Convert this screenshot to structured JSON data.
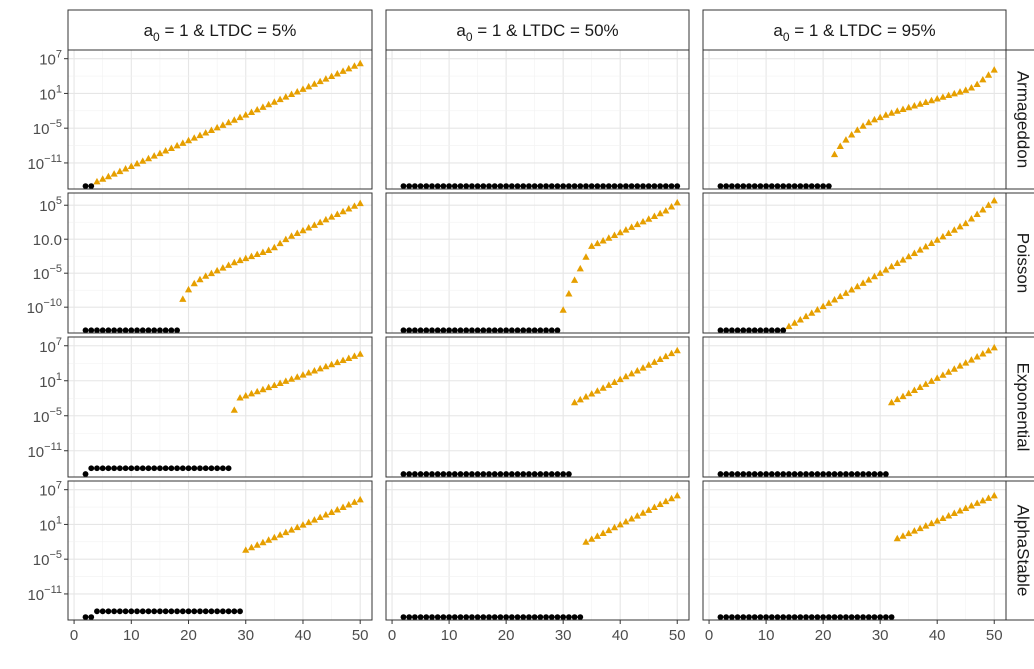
{
  "chart_data": {
    "type": "scatter",
    "x_ticks": [
      0,
      10,
      20,
      30,
      40,
      50
    ],
    "xlim": [
      0,
      51
    ],
    "y_scale": "log10",
    "rows": [
      {
        "label": "Armageddon",
        "y_ticks": [
          {
            "exp": 7,
            "text": "10",
            "sup": "7"
          },
          {
            "exp": 1,
            "text": "10",
            "sup": "1"
          },
          {
            "exp": -5,
            "text": "10",
            "sup": "−5"
          },
          {
            "exp": -11,
            "text": "10",
            "sup": "−11"
          }
        ],
        "ylim_log10": [
          -15.5,
          8.5
        ]
      },
      {
        "label": "Poisson",
        "y_ticks": [
          {
            "exp": 5,
            "text": "10",
            "sup": "5"
          },
          {
            "exp": 0,
            "text": "10.0",
            "sup": ""
          },
          {
            "exp": -5,
            "text": "10",
            "sup": "−5"
          },
          {
            "exp": -10,
            "text": "10",
            "sup": "−10"
          }
        ],
        "ylim_log10": [
          -13.8,
          6.8
        ]
      },
      {
        "label": "Exponential",
        "y_ticks": [
          {
            "exp": 7,
            "text": "10",
            "sup": "7"
          },
          {
            "exp": 1,
            "text": "10",
            "sup": "1"
          },
          {
            "exp": -5,
            "text": "10",
            "sup": "−5"
          },
          {
            "exp": -11,
            "text": "10",
            "sup": "−11"
          }
        ],
        "ylim_log10": [
          -15.5,
          8.5
        ]
      },
      {
        "label": "AlphaStable",
        "y_ticks": [
          {
            "exp": 7,
            "text": "10",
            "sup": "7"
          },
          {
            "exp": 1,
            "text": "10",
            "sup": "1"
          },
          {
            "exp": -5,
            "text": "10",
            "sup": "−5"
          },
          {
            "exp": -11,
            "text": "10",
            "sup": "−11"
          }
        ],
        "ylim_log10": [
          -15.5,
          8.5
        ]
      }
    ],
    "columns": [
      {
        "a_base": "a",
        "a_sub": "0",
        "rest": " = 1  &  LTDC = 5%"
      },
      {
        "a_base": "a",
        "a_sub": "0",
        "rest": " = 1  &  LTDC = 50%"
      },
      {
        "a_base": "a",
        "a_sub": "0",
        "rest": " = 1  &  LTDC = 95%"
      }
    ],
    "series": [
      {
        "name": "",
        "color": "#000000",
        "shape": "circle"
      },
      {
        "name": "",
        "color": "#E69F00",
        "shape": "triangle"
      }
    ],
    "panels": [
      {
        "row": 0,
        "col": 0,
        "black": {
          "x": [
            2,
            3
          ],
          "log10y": [
            -15.0,
            -15.0
          ]
        },
        "orange": {
          "x_start": 4,
          "x_end": 50,
          "log10y_start": -14.2,
          "log10y_end": 6.2
        }
      },
      {
        "row": 0,
        "col": 1,
        "black": {
          "x_start": 2,
          "x_end": 50,
          "log10y": -15.0
        },
        "orange": null
      },
      {
        "row": 0,
        "col": 2,
        "black": {
          "x_start": 2,
          "x_end": 21,
          "log10y": -15.0
        },
        "orange": {
          "x": [
            22,
            23,
            24,
            25,
            26,
            27,
            28,
            29,
            30,
            31,
            32,
            33,
            34,
            35,
            36,
            37,
            38,
            39,
            40,
            41,
            42,
            43,
            44,
            45,
            46,
            47,
            48,
            49,
            50
          ],
          "log10y": [
            -9.5,
            -8.1,
            -7.0,
            -6.1,
            -5.3,
            -4.6,
            -4.0,
            -3.5,
            -3.1,
            -2.7,
            -2.35,
            -2.0,
            -1.7,
            -1.4,
            -1.1,
            -0.8,
            -0.5,
            -0.2,
            0.1,
            0.4,
            0.7,
            1.0,
            1.3,
            1.6,
            2.0,
            2.6,
            3.4,
            4.2,
            5.1
          ]
        }
      },
      {
        "row": 1,
        "col": 0,
        "black": {
          "x_start": 2,
          "x_end": 18,
          "log10y": -13.4
        },
        "orange": {
          "x": [
            19,
            20,
            21,
            22,
            23,
            24,
            25,
            26,
            27,
            28,
            29,
            30,
            31,
            32,
            33,
            34,
            35,
            36,
            37,
            38,
            39,
            40,
            41,
            42,
            43,
            44,
            45,
            46,
            47,
            48,
            49,
            50
          ],
          "log10y": [
            -8.8,
            -7.4,
            -6.5,
            -5.9,
            -5.4,
            -5.0,
            -4.6,
            -4.2,
            -3.8,
            -3.4,
            -3.1,
            -2.8,
            -2.5,
            -2.2,
            -1.9,
            -1.6,
            -1.2,
            -0.6,
            0.0,
            0.5,
            0.9,
            1.3,
            1.7,
            2.1,
            2.5,
            2.9,
            3.3,
            3.7,
            4.1,
            4.5,
            4.9,
            5.3
          ]
        }
      },
      {
        "row": 1,
        "col": 1,
        "black": {
          "x_start": 2,
          "x_end": 29,
          "log10y": -13.4
        },
        "orange": {
          "x": [
            30,
            31,
            32,
            33,
            34,
            35,
            36,
            37,
            38,
            39,
            40,
            41,
            42,
            43,
            44,
            45,
            46,
            47,
            48,
            49,
            50
          ],
          "log10y": [
            -10.4,
            -8.0,
            -6.0,
            -4.3,
            -2.6,
            -1.0,
            -0.6,
            -0.2,
            0.2,
            0.6,
            1.0,
            1.4,
            1.8,
            2.2,
            2.6,
            3.0,
            3.4,
            3.8,
            4.2,
            4.8,
            5.4
          ]
        }
      },
      {
        "row": 1,
        "col": 2,
        "black": {
          "x_start": 2,
          "x_end": 13,
          "log10y": -13.4
        },
        "orange": {
          "x_start": 14,
          "x_end": 50,
          "log10y_start": -12.8,
          "log10y_end": 4.8,
          "bend_at": 46,
          "bend_add": 0.9
        }
      },
      {
        "row": 2,
        "col": 0,
        "black": {
          "x": [
            2
          ],
          "log10y": [
            -15.0
          ],
          "x2_start": 3,
          "x2_end": 27,
          "log10y2": -14.0
        },
        "orange": {
          "x": [
            28
          ],
          "log10y": [
            -4.0
          ],
          "x2_start": 29,
          "x2_end": 50,
          "log10y2_start": -1.9,
          "log10y2_end": 5.6
        }
      },
      {
        "row": 2,
        "col": 1,
        "black": {
          "x_start": 2,
          "x_end": 31,
          "log10y": -15.0
        },
        "orange": {
          "x_start": 32,
          "x_end": 50,
          "log10y_start": -2.7,
          "log10y_end": 6.2
        }
      },
      {
        "row": 2,
        "col": 2,
        "black": {
          "x_start": 2,
          "x_end": 31,
          "log10y": -15.0
        },
        "orange": {
          "x_start": 32,
          "x_end": 50,
          "log10y_start": -2.7,
          "log10y_end": 6.7
        }
      },
      {
        "row": 3,
        "col": 0,
        "black": {
          "x": [
            2,
            3
          ],
          "log10y": [
            -15.0,
            -15.0
          ],
          "x2_start": 4,
          "x2_end": 29,
          "log10y2": -14.0
        },
        "orange": {
          "x_start": 30,
          "x_end": 50,
          "log10y_start": -3.4,
          "log10y_end": 5.3
        }
      },
      {
        "row": 3,
        "col": 1,
        "black": {
          "x_start": 2,
          "x_end": 33,
          "log10y": -15.0
        },
        "orange": {
          "x_start": 34,
          "x_end": 50,
          "log10y_start": -2.0,
          "log10y_end": 6.0
        }
      },
      {
        "row": 3,
        "col": 2,
        "black": {
          "x_start": 2,
          "x_end": 32,
          "log10y": -15.0
        },
        "orange": {
          "x_start": 33,
          "x_end": 50,
          "log10y_start": -1.4,
          "log10y_end": 6.0
        }
      }
    ]
  }
}
